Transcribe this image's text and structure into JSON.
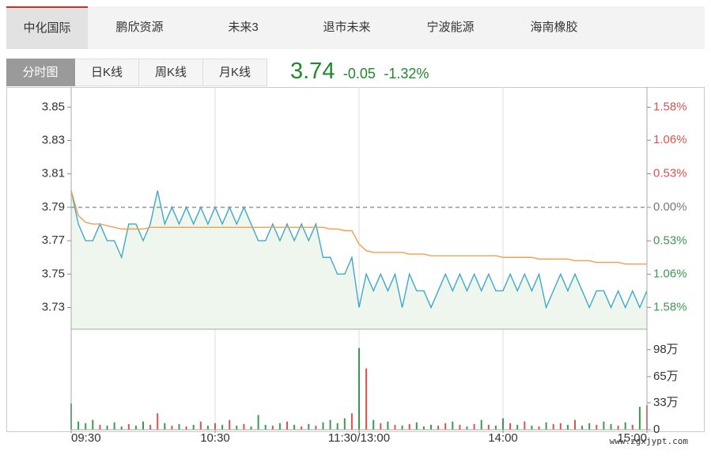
{
  "tabs": {
    "stocks": [
      "中化国际",
      "鹏欣资源",
      "未来3",
      "退市未来",
      "宁波能源",
      "海南橡胶"
    ],
    "views": [
      "分时图",
      "日K线",
      "周K线",
      "月K线"
    ]
  },
  "quote": {
    "price": "3.74",
    "change": "-0.05",
    "change_pct": "-1.32%"
  },
  "watermark": "www.zgxjypt.com",
  "chart_data": [
    {
      "type": "line",
      "x": [
        0,
        3,
        6,
        9,
        12,
        15,
        18,
        21,
        24,
        27,
        30,
        33,
        36,
        39,
        42,
        45,
        48,
        51,
        54,
        57,
        60,
        63,
        66,
        69,
        72,
        75,
        78,
        81,
        84,
        87,
        90,
        93,
        96,
        99,
        102,
        105,
        108,
        111,
        114,
        117,
        120,
        123,
        126,
        129,
        132,
        135,
        138,
        141,
        144,
        147,
        150,
        153,
        156,
        159,
        162,
        165,
        168,
        171,
        174,
        177,
        180,
        183,
        186,
        189,
        192,
        195,
        198,
        201,
        204,
        207,
        210,
        213,
        216,
        219,
        222,
        225,
        228,
        231,
        234,
        237,
        240
      ],
      "xlim": [
        0,
        240
      ],
      "series": [
        {
          "color": "#3fa9c9",
          "values": [
            3.8,
            3.78,
            3.77,
            3.77,
            3.78,
            3.77,
            3.77,
            3.76,
            3.78,
            3.78,
            3.77,
            3.78,
            3.8,
            3.78,
            3.79,
            3.78,
            3.79,
            3.78,
            3.79,
            3.78,
            3.79,
            3.78,
            3.79,
            3.78,
            3.79,
            3.78,
            3.77,
            3.77,
            3.78,
            3.77,
            3.78,
            3.77,
            3.78,
            3.77,
            3.78,
            3.76,
            3.76,
            3.75,
            3.75,
            3.76,
            3.73,
            3.75,
            3.74,
            3.75,
            3.74,
            3.75,
            3.73,
            3.75,
            3.74,
            3.74,
            3.73,
            3.74,
            3.75,
            3.74,
            3.75,
            3.74,
            3.75,
            3.74,
            3.75,
            3.74,
            3.74,
            3.75,
            3.74,
            3.75,
            3.74,
            3.75,
            3.73,
            3.74,
            3.75,
            3.74,
            3.75,
            3.74,
            3.73,
            3.74,
            3.74,
            3.73,
            3.74,
            3.73,
            3.74,
            3.73,
            3.74
          ]
        },
        {
          "color": "#f0a050",
          "values": [
            3.8,
            3.785,
            3.781,
            3.78,
            3.78,
            3.779,
            3.778,
            3.777,
            3.777,
            3.777,
            3.777,
            3.778,
            3.778,
            3.778,
            3.778,
            3.778,
            3.778,
            3.778,
            3.778,
            3.778,
            3.778,
            3.778,
            3.778,
            3.778,
            3.778,
            3.778,
            3.778,
            3.778,
            3.778,
            3.778,
            3.778,
            3.778,
            3.778,
            3.778,
            3.778,
            3.778,
            3.777,
            3.777,
            3.776,
            3.776,
            3.768,
            3.764,
            3.763,
            3.763,
            3.763,
            3.763,
            3.763,
            3.762,
            3.762,
            3.762,
            3.761,
            3.761,
            3.761,
            3.761,
            3.761,
            3.761,
            3.761,
            3.761,
            3.761,
            3.761,
            3.76,
            3.76,
            3.76,
            3.76,
            3.76,
            3.759,
            3.759,
            3.759,
            3.759,
            3.759,
            3.758,
            3.758,
            3.758,
            3.757,
            3.757,
            3.757,
            3.757,
            3.756,
            3.756,
            3.756,
            3.756
          ]
        }
      ],
      "fill_color": "#eef6ee",
      "ylim": [
        3.717,
        3.862
      ],
      "yticks": [
        3.85,
        3.83,
        3.81,
        3.79,
        3.77,
        3.75,
        3.73
      ],
      "baseline": 3.79,
      "y2lim": [
        -1.926,
        1.9
      ],
      "y2ticks": [
        {
          "value": 1.58,
          "label": "1.58%"
        },
        {
          "value": 1.06,
          "label": "1.06%"
        },
        {
          "value": 0.53,
          "label": "0.53%"
        },
        {
          "value": 0,
          "label": "0.00%"
        },
        {
          "value": -0.53,
          "label": "0.53%"
        },
        {
          "value": -1.06,
          "label": "1.06%"
        },
        {
          "value": -1.58,
          "label": "1.58%"
        }
      ],
      "up_color": "#d9534f",
      "down_color": "#3b9a4d",
      "flat_color": "#777777"
    },
    {
      "type": "bar",
      "values": [
        32,
        10,
        8,
        12,
        6,
        5,
        9,
        4,
        7,
        5,
        10,
        6,
        20,
        8,
        5,
        7,
        4,
        6,
        10,
        5,
        8,
        6,
        12,
        5,
        7,
        4,
        18,
        6,
        5,
        8,
        10,
        6,
        4,
        7,
        5,
        9,
        12,
        8,
        14,
        20,
        100,
        75,
        12,
        8,
        10,
        6,
        5,
        7,
        9,
        4,
        6,
        5,
        8,
        10,
        6,
        4,
        7,
        12,
        6,
        5,
        14,
        8,
        6,
        10,
        5,
        4,
        9,
        7,
        8,
        6,
        12,
        5,
        8,
        6,
        10,
        7,
        5,
        9,
        6,
        28,
        30
      ],
      "ylim": [
        0,
        123
      ],
      "yticks": [
        {
          "value": 98,
          "label": "98万"
        },
        {
          "value": 65,
          "label": "65万"
        },
        {
          "value": 33,
          "label": "33万"
        },
        0
      ],
      "xlim": [
        0,
        240
      ],
      "xticks": [
        {
          "value": 0,
          "label": "09:30"
        },
        {
          "value": 60,
          "label": "10:30"
        },
        {
          "value": 120,
          "label": "11:30/13:00"
        },
        {
          "value": 180,
          "label": "14:00"
        },
        {
          "value": 240,
          "label": "15:00"
        }
      ]
    }
  ]
}
